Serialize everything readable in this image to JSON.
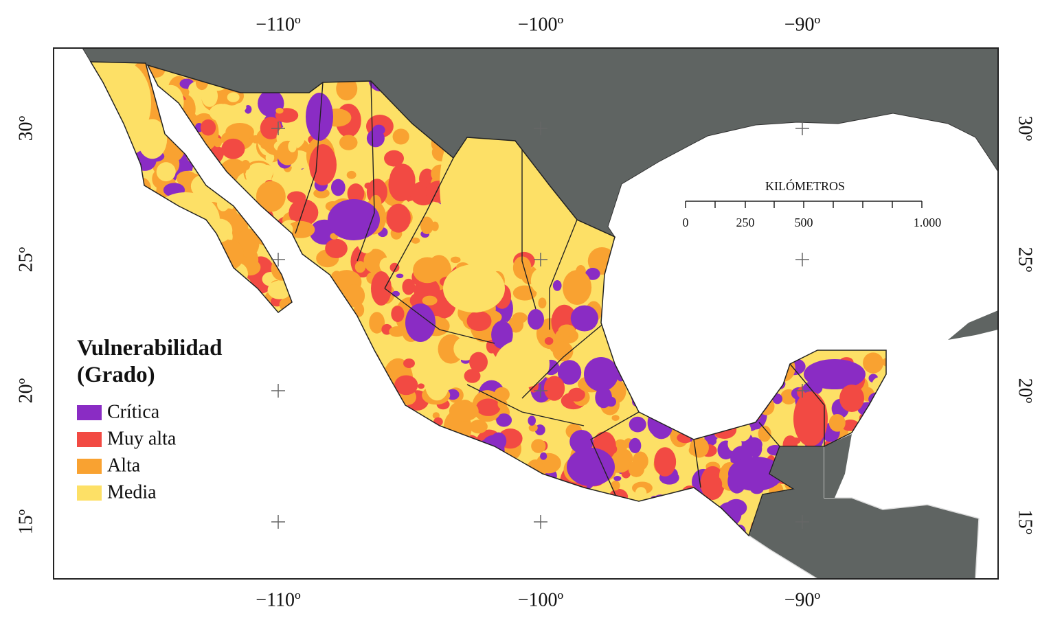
{
  "map": {
    "lon_labels_top": [
      "−110º",
      "−100º",
      "−90º"
    ],
    "lon_labels_bottom": [
      "−110º",
      "−100º",
      "−90º"
    ],
    "lat_labels_left": [
      "30º",
      "25º",
      "20º",
      "15º"
    ],
    "lat_labels_right": [
      "30º",
      "25º",
      "20º",
      "15º"
    ],
    "legend": {
      "title": [
        "Vulnerabilidad",
        "(Grado)"
      ],
      "items": [
        {
          "label": "Crítica",
          "color": "#8a2cc4"
        },
        {
          "label": "Muy alta",
          "color": "#f24a43"
        },
        {
          "label": "Alta",
          "color": "#f9a231"
        },
        {
          "label": "Media",
          "color": "#fde066"
        }
      ]
    },
    "scale": {
      "title": "KILÓMETROS",
      "labels": [
        "0",
        "250",
        "500",
        "1.000"
      ]
    }
  }
}
